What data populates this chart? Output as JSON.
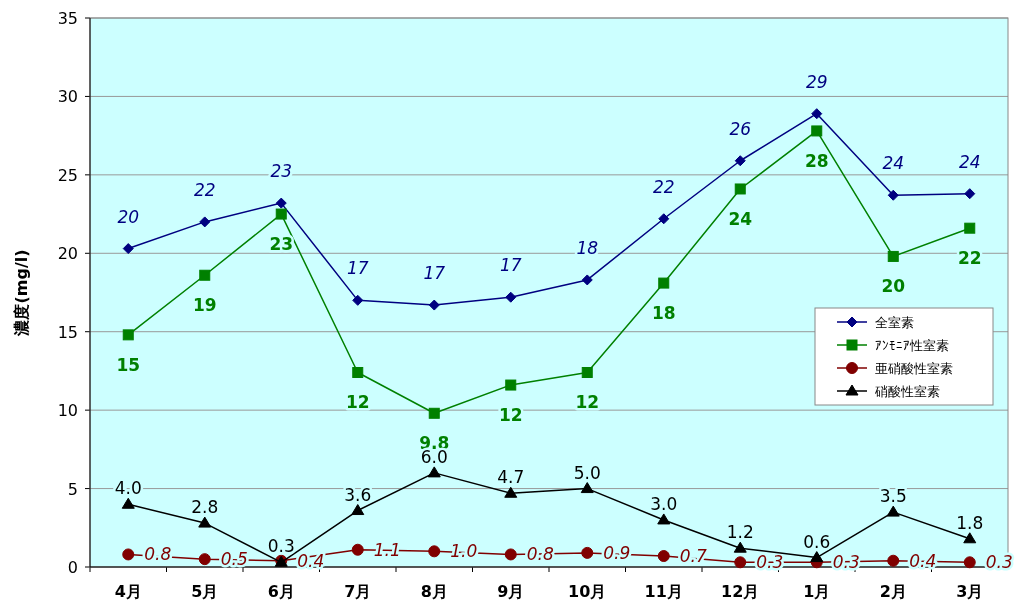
{
  "chart_data": {
    "type": "line",
    "ylabel": "濃度(mg/l)",
    "categories": [
      "4月",
      "5月",
      "6月",
      "7月",
      "8月",
      "9月",
      "10月",
      "11月",
      "12月",
      "1月",
      "2月",
      "3月"
    ],
    "ylim": [
      0,
      35
    ],
    "yticks": [
      0,
      5,
      10,
      15,
      20,
      25,
      30,
      35
    ],
    "grid": "y",
    "legend": "right",
    "series": [
      {
        "name": "全室素",
        "color": "#000080",
        "marker": "diamond",
        "values": [
          20.3,
          22.0,
          23.2,
          17.0,
          16.7,
          17.2,
          18.3,
          22.2,
          25.9,
          28.9,
          23.7,
          23.8
        ],
        "value_labels": [
          "20",
          "22",
          "23",
          "17",
          "17",
          "17",
          "18",
          "22",
          "26",
          "29",
          "24",
          "24"
        ]
      },
      {
        "name": "ｱﾝﾓﾆｱ性室素",
        "color": "#008000",
        "marker": "square",
        "values": [
          14.8,
          18.6,
          22.5,
          12.4,
          9.8,
          11.6,
          12.4,
          18.1,
          24.1,
          27.8,
          19.8,
          21.6
        ],
        "value_labels": [
          "15",
          "19",
          "23",
          "12",
          "9.8",
          "12",
          "12",
          "18",
          "24",
          "28",
          "20",
          "22"
        ]
      },
      {
        "name": "亜硝酸性室素",
        "color": "#800000",
        "marker": "circle",
        "values": [
          0.8,
          0.5,
          0.4,
          1.1,
          1.0,
          0.8,
          0.9,
          0.7,
          0.3,
          0.3,
          0.4,
          0.3
        ],
        "value_labels": [
          "0.8",
          "0.5",
          "0.4",
          "1.1",
          "1.0",
          "0.8",
          "0.9",
          "0.7",
          "0.3",
          "0.3",
          "0.4",
          "0.3"
        ]
      },
      {
        "name": "硝酸性室素",
        "color": "#000000",
        "marker": "triangle",
        "values": [
          4.0,
          2.8,
          0.3,
          3.6,
          6.0,
          4.7,
          5.0,
          3.0,
          1.2,
          0.6,
          3.5,
          1.8
        ],
        "value_labels": [
          "4.0",
          "2.8",
          "0.3",
          "3.6",
          "6.0",
          "4.7",
          "5.0",
          "3.0",
          "1.2",
          "0.6",
          "3.5",
          "1.8"
        ]
      }
    ]
  }
}
